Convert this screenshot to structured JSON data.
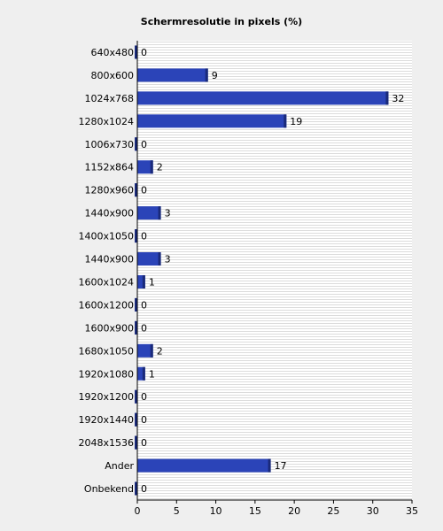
{
  "chart_data": {
    "type": "bar",
    "orientation": "horizontal",
    "title": "Schermresolutie in pixels (%)",
    "xlabel": "",
    "ylabel": "",
    "xlim": [
      0,
      35
    ],
    "x_ticks": [
      0,
      5,
      10,
      15,
      20,
      25,
      30,
      35
    ],
    "grid": "horizontal-stripes",
    "legend": "none",
    "categories": [
      "640x480",
      "800x600",
      "1024x768",
      "1280x1024",
      "1006x730",
      "1152x864",
      "1280x960",
      "1440x900",
      "1400x1050",
      "1440x900",
      "1600x1024",
      "1600x1200",
      "1600x900",
      "1680x1050",
      "1920x1080",
      "1920x1200",
      "1920x1440",
      "2048x1536",
      "Ander",
      "Onbekend"
    ],
    "values": [
      0,
      9,
      32,
      19,
      0,
      2,
      0,
      3,
      0,
      3,
      1,
      0,
      0,
      2,
      1,
      0,
      0,
      0,
      17,
      0
    ],
    "bar_color": "#2b44b8",
    "bar_edge_color": "#1a2a7a",
    "plot_background": "#ffffff"
  }
}
